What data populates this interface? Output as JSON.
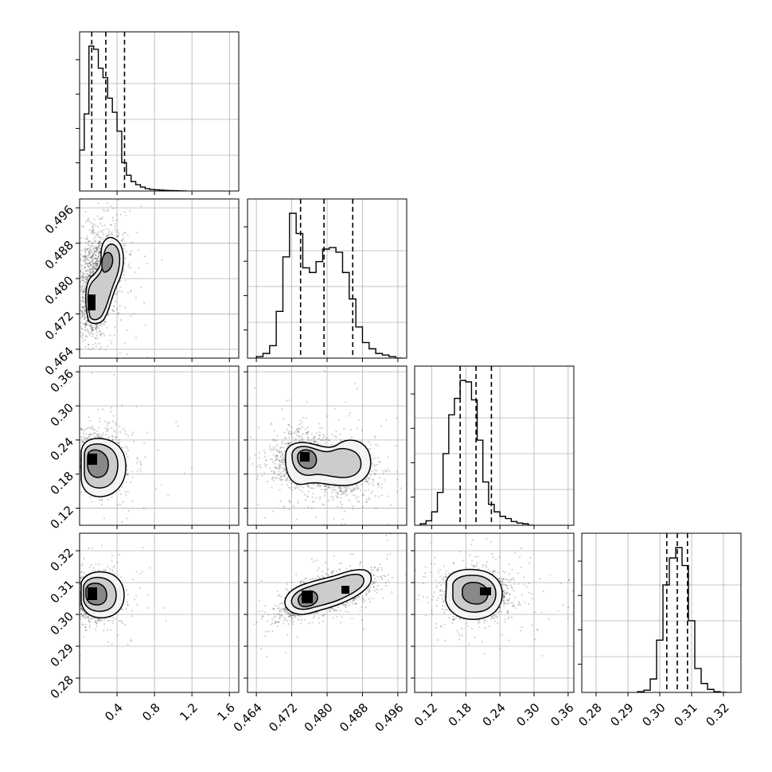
{
  "chart_data": {
    "type": "corner",
    "description_note": "",
    "parameters": [
      {
        "index": 0,
        "range": [
          0.0,
          1.7
        ],
        "ticks": [
          0.4,
          0.8,
          1.2,
          1.6
        ],
        "tick_labels": [
          "0.4",
          "0.8",
          "1.2",
          "1.6"
        ],
        "quantiles": [
          0.13,
          0.28,
          0.48
        ],
        "histogram": {
          "edges": [
            0.0,
            0.05,
            0.1,
            0.15,
            0.2,
            0.25,
            0.3,
            0.35,
            0.4,
            0.45,
            0.5,
            0.55,
            0.6,
            0.65,
            0.7,
            0.75,
            0.8,
            0.85,
            0.9,
            0.95,
            1.0,
            1.05,
            1.1,
            1.15
          ],
          "counts": [
            0.26,
            0.49,
            0.92,
            0.9,
            0.78,
            0.72,
            0.59,
            0.5,
            0.38,
            0.18,
            0.1,
            0.06,
            0.04,
            0.025,
            0.015,
            0.01,
            0.008,
            0.006,
            0.004,
            0.003,
            0.002,
            0.001,
            0.0
          ]
        }
      },
      {
        "index": 1,
        "range": [
          0.462,
          0.498
        ],
        "ticks": [
          0.464,
          0.472,
          0.48,
          0.488,
          0.496
        ],
        "tick_labels": [
          "0.464",
          "0.472",
          "0.480",
          "0.488",
          "0.496"
        ],
        "quantiles": [
          0.474,
          0.4793,
          0.4858
        ],
        "histogram": {
          "edges": [
            0.464,
            0.4655,
            0.467,
            0.4685,
            0.47,
            0.4715,
            0.473,
            0.4745,
            0.476,
            0.4775,
            0.479,
            0.4805,
            0.482,
            0.4835,
            0.485,
            0.4865,
            0.488,
            0.4895,
            0.491,
            0.4925,
            0.494,
            0.4955,
            0.497
          ],
          "counts": [
            0.01,
            0.03,
            0.08,
            0.3,
            0.65,
            0.93,
            0.8,
            0.58,
            0.55,
            0.62,
            0.7,
            0.71,
            0.68,
            0.55,
            0.38,
            0.2,
            0.1,
            0.06,
            0.03,
            0.02,
            0.01,
            0.0
          ]
        }
      },
      {
        "index": 2,
        "range": [
          0.09,
          0.37
        ],
        "ticks": [
          0.12,
          0.18,
          0.24,
          0.3,
          0.36
        ],
        "tick_labels": [
          "0.12",
          "0.18",
          "0.24",
          "0.30",
          "0.36"
        ],
        "quantiles": [
          0.17,
          0.198,
          0.225
        ],
        "histogram": {
          "edges": [
            0.1,
            0.11,
            0.12,
            0.13,
            0.14,
            0.15,
            0.16,
            0.17,
            0.18,
            0.19,
            0.2,
            0.21,
            0.22,
            0.23,
            0.24,
            0.25,
            0.26,
            0.27,
            0.28,
            0.29,
            0.3
          ],
          "counts": [
            0.01,
            0.03,
            0.09,
            0.22,
            0.48,
            0.74,
            0.85,
            0.97,
            0.96,
            0.84,
            0.57,
            0.29,
            0.14,
            0.09,
            0.06,
            0.045,
            0.025,
            0.015,
            0.01,
            0.0
          ]
        }
      },
      {
        "index": 3,
        "range": [
          0.2755,
          0.3255
        ],
        "ticks": [
          0.28,
          0.29,
          0.3,
          0.31,
          0.32
        ],
        "tick_labels": [
          "0.28",
          "0.29",
          "0.30",
          "0.31",
          "0.32"
        ],
        "quantiles": [
          0.3022,
          0.3055,
          0.3087
        ],
        "histogram": {
          "edges": [
            0.293,
            0.295,
            0.297,
            0.299,
            0.301,
            0.303,
            0.305,
            0.307,
            0.309,
            0.311,
            0.313,
            0.315,
            0.317,
            0.319,
            0.321
          ],
          "counts": [
            0.005,
            0.015,
            0.09,
            0.35,
            0.72,
            0.9,
            0.97,
            0.85,
            0.48,
            0.16,
            0.06,
            0.02,
            0.005,
            0.0
          ]
        }
      }
    ],
    "grid": true,
    "contour_levels": 3
  }
}
